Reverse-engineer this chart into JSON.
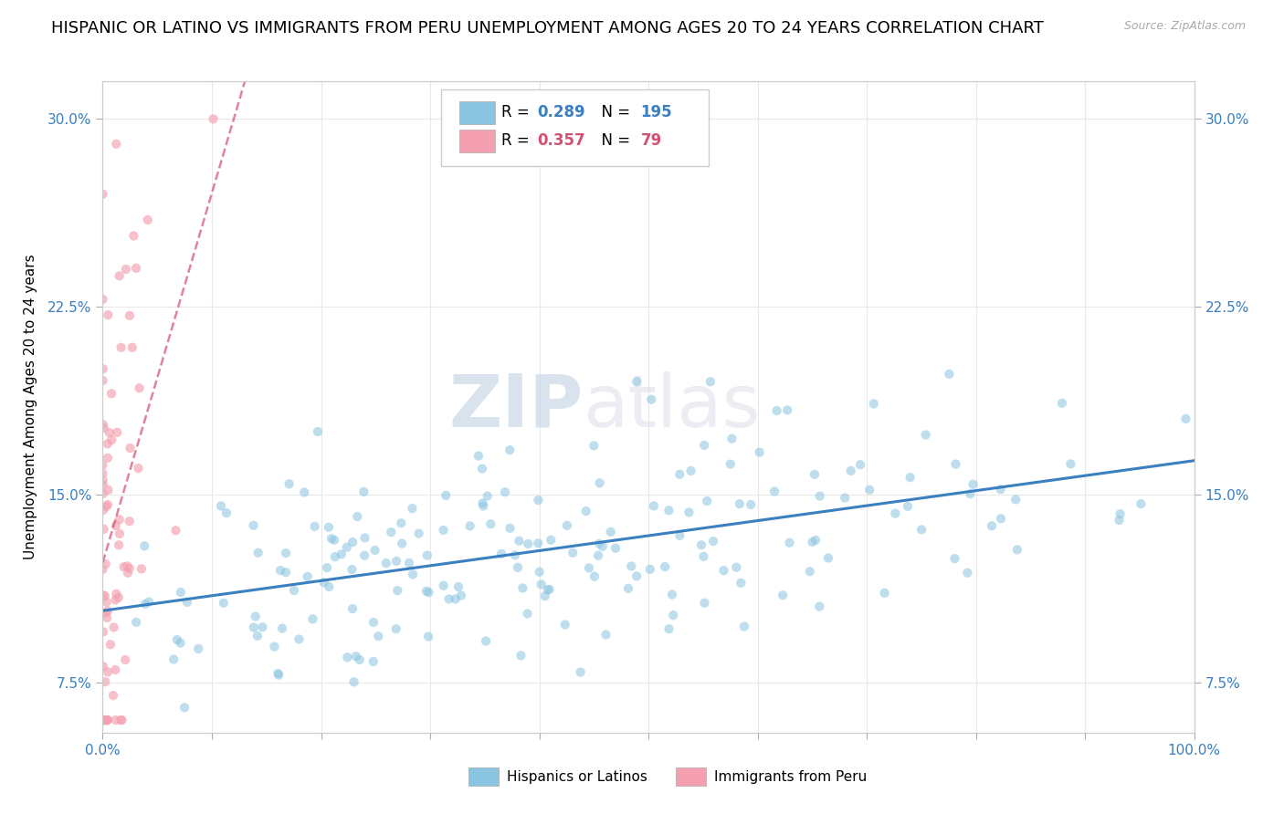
{
  "title": "HISPANIC OR LATINO VS IMMIGRANTS FROM PERU UNEMPLOYMENT AMONG AGES 20 TO 24 YEARS CORRELATION CHART",
  "source_text": "Source: ZipAtlas.com",
  "ylabel": "Unemployment Among Ages 20 to 24 years",
  "xlim": [
    0.0,
    1.0
  ],
  "ylim": [
    0.055,
    0.315
  ],
  "yticks": [
    0.075,
    0.15,
    0.225,
    0.3
  ],
  "ytick_labels": [
    "7.5%",
    "15.0%",
    "22.5%",
    "30.0%"
  ],
  "xtick_positions": [
    0.0,
    0.1,
    0.2,
    0.3,
    0.4,
    0.5,
    0.6,
    0.7,
    0.8,
    0.9,
    1.0
  ],
  "xtick_labels": [
    "0.0%",
    "",
    "",
    "",
    "",
    "",
    "",
    "",
    "",
    "",
    "100.0%"
  ],
  "blue_color": "#89c4e1",
  "pink_color": "#f4a0b0",
  "blue_line_color": "#3a7fbf",
  "pink_line_color": "#d45070",
  "R_blue": 0.289,
  "N_blue": 195,
  "R_pink": 0.357,
  "N_pink": 79,
  "legend_label_blue": "Hispanics or Latinos",
  "legend_label_pink": "Immigrants from Peru",
  "watermark_zip": "ZIP",
  "watermark_atlas": "atlas",
  "title_fontsize": 13,
  "axis_label_fontsize": 11,
  "tick_fontsize": 11,
  "tick_color": "#3a7fbf",
  "blue_seed": 42,
  "pink_seed": 99,
  "blue_scatter_alpha": 0.55,
  "pink_scatter_alpha": 0.65,
  "scatter_size": 55
}
